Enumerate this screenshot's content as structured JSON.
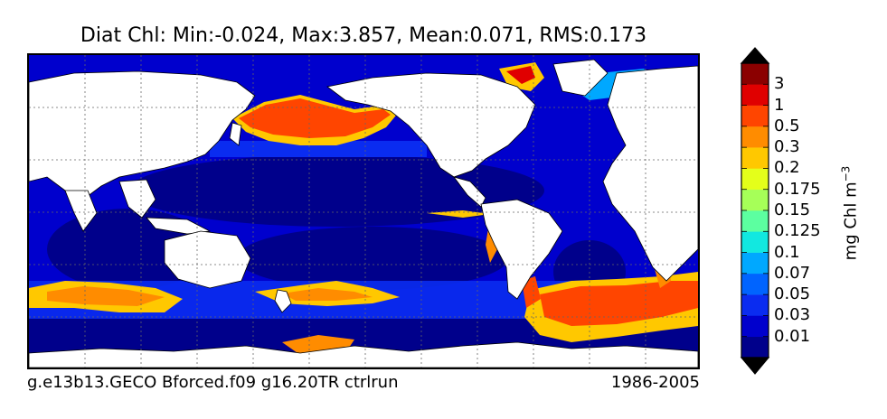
{
  "title": "Diat Chl: Min:-0.024, Max:3.857, Mean:0.071, RMS:0.173",
  "footer": {
    "run_name": "g.e13b13.GECO Bforced.f09 g16.20TR ctrlrun",
    "period": "1986-2005"
  },
  "colorbar": {
    "unit_base": "mg Chl m",
    "unit_exponent": "−3",
    "ticks": [
      "0.01",
      "0.03",
      "0.05",
      "0.07",
      "0.1",
      "0.125",
      "0.15",
      "0.175",
      "0.2",
      "0.3",
      "0.5",
      "1",
      "3"
    ],
    "colors": [
      "#00008b",
      "#0000cd",
      "#0a2cf0",
      "#0064ff",
      "#00a8ff",
      "#12e8e0",
      "#5cffa0",
      "#a6ff58",
      "#e4ff1a",
      "#ffc800",
      "#ff8c00",
      "#ff4500",
      "#e00000",
      "#8b0000"
    ],
    "under_color": "#000000",
    "over_color": "#000000"
  },
  "map": {
    "land_color": "#ffffff",
    "ocean_base_color": "#00008b",
    "grid": true
  }
}
